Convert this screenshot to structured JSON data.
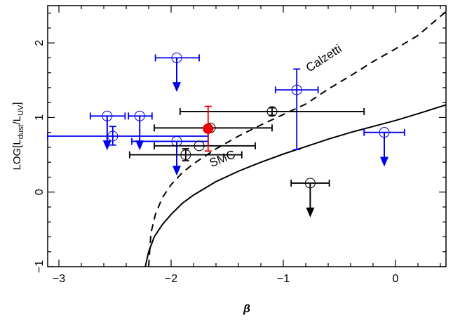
{
  "chart_data": {
    "type": "scatter",
    "title": "",
    "xlabel": "β",
    "ylabel": {
      "prefix": "LOG[L",
      "num_sub": "dust",
      "sep": "/L",
      "den_sub": "UV",
      "suffix": "]"
    },
    "xlim": [
      -3.1,
      0.45
    ],
    "ylim": [
      -1,
      2.5
    ],
    "x_ticks": [
      -3,
      -2,
      -1,
      0
    ],
    "y_ticks": [
      -1,
      0,
      1,
      2
    ],
    "grid": false,
    "curves": [
      {
        "name": "Calzetti",
        "style": "dashed",
        "color": "#000000",
        "x": [
          -2.2,
          -2.18,
          -2.14,
          -2.08,
          -2.0,
          -1.9,
          -1.8,
          -1.6,
          -1.4,
          -1.2,
          -1.0,
          -0.8,
          -0.6,
          -0.4,
          -0.2,
          0.0,
          0.2,
          0.45
        ],
        "y": [
          -1.0,
          -0.55,
          -0.3,
          -0.08,
          0.1,
          0.26,
          0.38,
          0.58,
          0.75,
          0.9,
          1.04,
          1.18,
          1.38,
          1.56,
          1.75,
          1.92,
          2.1,
          2.42
        ]
      },
      {
        "name": "SMC",
        "style": "solid",
        "color": "#000000",
        "x": [
          -2.23,
          -2.2,
          -2.15,
          -2.08,
          -2.0,
          -1.9,
          -1.8,
          -1.6,
          -1.4,
          -1.2,
          -1.0,
          -0.8,
          -0.6,
          -0.4,
          -0.2,
          0.0,
          0.2,
          0.45
        ],
        "y": [
          -1.0,
          -0.8,
          -0.6,
          -0.44,
          -0.3,
          -0.15,
          -0.04,
          0.14,
          0.28,
          0.4,
          0.51,
          0.61,
          0.71,
          0.8,
          0.88,
          0.96,
          1.05,
          1.17
        ]
      }
    ],
    "series": [
      {
        "color": "#0000ee",
        "marker": "open-circle",
        "points": [
          {
            "x": -1.95,
            "y": 1.8,
            "xerr": [
              0.19,
              0.2
            ],
            "upper_limit": true
          },
          {
            "x": -2.57,
            "y": 1.02,
            "xerr": [
              0.15,
              0.16
            ],
            "upper_limit": true
          },
          {
            "x": -2.28,
            "y": 1.02,
            "xerr": [
              0.1,
              0.11
            ],
            "upper_limit": true
          },
          {
            "x": -2.52,
            "y": 0.75,
            "xerr": [
              0.58,
              0.85
            ],
            "yerr": [
              0.12,
              0.13
            ]
          },
          {
            "x": -1.95,
            "y": 0.68,
            "xerr": [
              0.4,
              0.28
            ],
            "upper_limit": true
          },
          {
            "x": -0.88,
            "y": 1.37,
            "xerr": [
              0.19,
              0.19
            ],
            "yerr": [
              0.8,
              0.28
            ]
          },
          {
            "x": -0.1,
            "y": 0.8,
            "xerr": [
              0.18,
              0.18
            ],
            "upper_limit": true
          }
        ]
      },
      {
        "color": "#000000",
        "marker": "open-circle",
        "points": [
          {
            "x": -1.1,
            "y": 1.08,
            "xerr": [
              0.82,
              0.82
            ],
            "yerr": [
              0.05,
              0.05
            ]
          },
          {
            "x": -1.65,
            "y": 0.86,
            "xerr": [
              0.5,
              0.55
            ]
          },
          {
            "x": -1.75,
            "y": 0.62,
            "xerr": [
              0.4,
              0.5
            ]
          },
          {
            "x": -1.87,
            "y": 0.5,
            "xerr": [
              0.5,
              0.5
            ],
            "yerr": [
              0.08,
              0.08
            ]
          },
          {
            "x": -0.76,
            "y": 0.12,
            "xerr": [
              0.17,
              0.17
            ],
            "upper_limit": true
          }
        ]
      },
      {
        "color": "#ee0000",
        "marker": "filled-circle",
        "points": [
          {
            "x": -1.67,
            "y": 0.85,
            "yerr": [
              0.3,
              0.3
            ]
          }
        ]
      }
    ],
    "annotations": [
      {
        "text": "Calzetti",
        "x": -0.62,
        "y": 1.75,
        "angle": -33
      },
      {
        "text": "SMC",
        "x": -1.53,
        "y": 0.4,
        "angle": -22
      }
    ]
  }
}
